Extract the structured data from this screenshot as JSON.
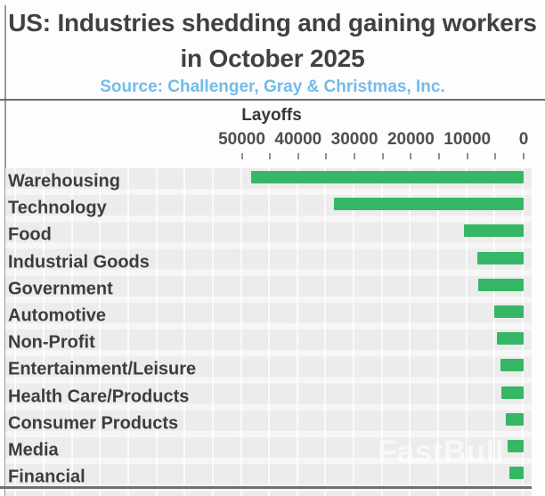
{
  "header": {
    "title_line1": "US: Industries shedding and gaining workers",
    "title_line2": "in October 2025",
    "source": "Source: Challenger, Gray & Christmas, Inc."
  },
  "axis": {
    "label": "Layoffs",
    "tick_labels": [
      "50000",
      "40000",
      "30000",
      "20000",
      "10000",
      "0"
    ]
  },
  "watermark": "FastBull",
  "colors": {
    "bar_green": "#36b765",
    "title_text": "#414141",
    "source_text": "#72bbea",
    "plot_band": "#ececec",
    "axis_line": "#707070"
  },
  "chart_data": {
    "type": "bar",
    "orientation": "horizontal",
    "title": "US: Industries shedding and gaining workers in October 2025",
    "subtitle": "Source: Challenger, Gray & Christmas, Inc.",
    "xlabel": "Layoffs",
    "axis_reversed": true,
    "xlim": [
      0,
      50000
    ],
    "grid": true,
    "bar_color": "#36b765",
    "categories": [
      "Warehousing",
      "Technology",
      "Food",
      "Industrial Goods",
      "Government",
      "Automotive",
      "Non-Profit",
      "Entertainment/Leisure",
      "Health Care/Products",
      "Consumer Products",
      "Media",
      "Financial"
    ],
    "values": [
      48300,
      33600,
      10600,
      8200,
      8000,
      5200,
      4800,
      4100,
      3900,
      3200,
      2800,
      2600
    ]
  }
}
